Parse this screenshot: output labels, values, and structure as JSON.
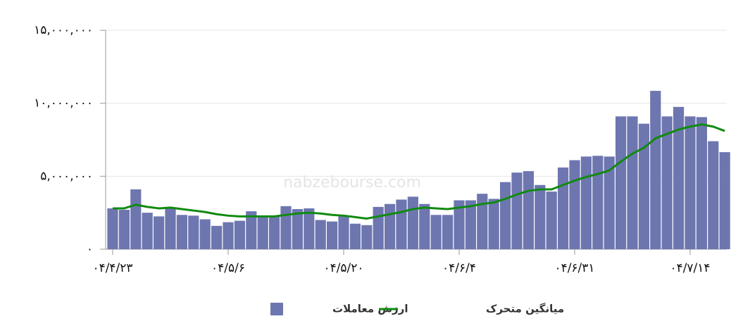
{
  "chart_data": {
    "type": "bar-line",
    "watermark": "nabzebourse.com",
    "categories": [
      "۰۴/۴/۲۳",
      null,
      null,
      null,
      null,
      null,
      null,
      null,
      null,
      null,
      "۰۴/۵/۶",
      null,
      null,
      null,
      null,
      null,
      null,
      null,
      null,
      null,
      "۰۴/۵/۲۰",
      null,
      null,
      null,
      null,
      null,
      null,
      null,
      null,
      null,
      "۰۴/۶/۴",
      null,
      null,
      null,
      null,
      null,
      null,
      null,
      null,
      null,
      "۰۴/۶/۳۱",
      null,
      null,
      null,
      null,
      null,
      null,
      null,
      null,
      null,
      "۰۴/۷/۱۴",
      null,
      null,
      null
    ],
    "series": [
      {
        "name": "ارزش معاملات",
        "type": "bar",
        "color": "#6e76b0",
        "values": [
          2800000,
          2700000,
          4100000,
          2500000,
          2250000,
          2850000,
          2350000,
          2300000,
          2050000,
          1600000,
          1850000,
          1950000,
          2600000,
          2250000,
          2250000,
          2950000,
          2750000,
          2800000,
          2000000,
          1900000,
          2300000,
          1750000,
          1650000,
          2900000,
          3100000,
          3400000,
          3600000,
          3100000,
          2350000,
          2350000,
          3350000,
          3350000,
          3800000,
          3450000,
          4600000,
          5250000,
          5350000,
          4400000,
          3950000,
          5600000,
          6100000,
          6350000,
          6400000,
          6350000,
          9100000,
          9100000,
          8600000,
          10850000,
          9100000,
          9750000,
          9100000,
          9050000,
          7400000,
          6650000
        ]
      },
      {
        "name": "میانگین متحرک",
        "type": "line",
        "color": "#108a10",
        "values": [
          2800000,
          2800000,
          3050000,
          2900000,
          2800000,
          2850000,
          2750000,
          2650000,
          2550000,
          2400000,
          2300000,
          2250000,
          2250000,
          2250000,
          2250000,
          2350000,
          2450000,
          2500000,
          2450000,
          2350000,
          2300000,
          2200000,
          2100000,
          2250000,
          2400000,
          2550000,
          2750000,
          2850000,
          2800000,
          2750000,
          2850000,
          2950000,
          3100000,
          3200000,
          3450000,
          3750000,
          4000000,
          4100000,
          4100000,
          4400000,
          4700000,
          4950000,
          5150000,
          5400000,
          6000000,
          6550000,
          6950000,
          7600000,
          7900000,
          8200000,
          8400000,
          8550000,
          8400000,
          8100000
        ]
      }
    ],
    "ylim": [
      0,
      15000000
    ],
    "yticks": [
      {
        "value": 0,
        "label": "۰"
      },
      {
        "value": 5000000,
        "label": "۵,۰۰۰,۰۰۰"
      },
      {
        "value": 10000000,
        "label": "۱۰,۰۰۰,۰۰۰"
      },
      {
        "value": 15000000,
        "label": "۱۵,۰۰۰,۰۰۰"
      }
    ],
    "grid": true
  }
}
